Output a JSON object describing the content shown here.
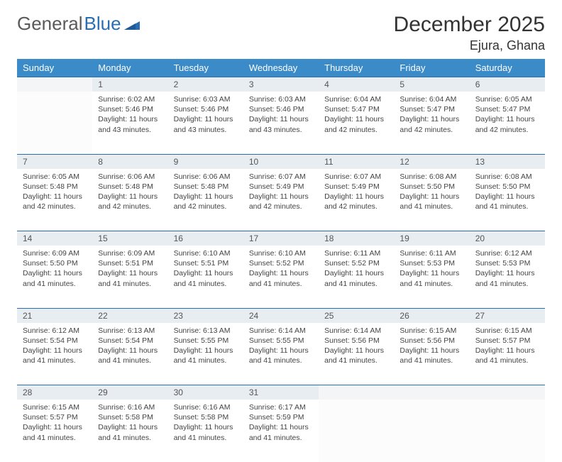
{
  "logo": {
    "part1": "General",
    "part2": "Blue"
  },
  "title": "December 2025",
  "location": "Ejura, Ghana",
  "colors": {
    "header_bg": "#3b8bc9",
    "header_text": "#ffffff",
    "daynum_bg": "#e8edf1",
    "border": "#2a6db0",
    "logo_gray": "#5a5a5a",
    "logo_blue": "#2a6db0"
  },
  "weekdays": [
    "Sunday",
    "Monday",
    "Tuesday",
    "Wednesday",
    "Thursday",
    "Friday",
    "Saturday"
  ],
  "weeks": [
    {
      "nums": [
        "",
        "1",
        "2",
        "3",
        "4",
        "5",
        "6"
      ],
      "cells": [
        null,
        {
          "sr": "Sunrise: 6:02 AM",
          "ss": "Sunset: 5:46 PM",
          "dl": "Daylight: 11 hours and 43 minutes."
        },
        {
          "sr": "Sunrise: 6:03 AM",
          "ss": "Sunset: 5:46 PM",
          "dl": "Daylight: 11 hours and 43 minutes."
        },
        {
          "sr": "Sunrise: 6:03 AM",
          "ss": "Sunset: 5:46 PM",
          "dl": "Daylight: 11 hours and 43 minutes."
        },
        {
          "sr": "Sunrise: 6:04 AM",
          "ss": "Sunset: 5:47 PM",
          "dl": "Daylight: 11 hours and 42 minutes."
        },
        {
          "sr": "Sunrise: 6:04 AM",
          "ss": "Sunset: 5:47 PM",
          "dl": "Daylight: 11 hours and 42 minutes."
        },
        {
          "sr": "Sunrise: 6:05 AM",
          "ss": "Sunset: 5:47 PM",
          "dl": "Daylight: 11 hours and 42 minutes."
        }
      ]
    },
    {
      "nums": [
        "7",
        "8",
        "9",
        "10",
        "11",
        "12",
        "13"
      ],
      "cells": [
        {
          "sr": "Sunrise: 6:05 AM",
          "ss": "Sunset: 5:48 PM",
          "dl": "Daylight: 11 hours and 42 minutes."
        },
        {
          "sr": "Sunrise: 6:06 AM",
          "ss": "Sunset: 5:48 PM",
          "dl": "Daylight: 11 hours and 42 minutes."
        },
        {
          "sr": "Sunrise: 6:06 AM",
          "ss": "Sunset: 5:48 PM",
          "dl": "Daylight: 11 hours and 42 minutes."
        },
        {
          "sr": "Sunrise: 6:07 AM",
          "ss": "Sunset: 5:49 PM",
          "dl": "Daylight: 11 hours and 42 minutes."
        },
        {
          "sr": "Sunrise: 6:07 AM",
          "ss": "Sunset: 5:49 PM",
          "dl": "Daylight: 11 hours and 42 minutes."
        },
        {
          "sr": "Sunrise: 6:08 AM",
          "ss": "Sunset: 5:50 PM",
          "dl": "Daylight: 11 hours and 41 minutes."
        },
        {
          "sr": "Sunrise: 6:08 AM",
          "ss": "Sunset: 5:50 PM",
          "dl": "Daylight: 11 hours and 41 minutes."
        }
      ]
    },
    {
      "nums": [
        "14",
        "15",
        "16",
        "17",
        "18",
        "19",
        "20"
      ],
      "cells": [
        {
          "sr": "Sunrise: 6:09 AM",
          "ss": "Sunset: 5:50 PM",
          "dl": "Daylight: 11 hours and 41 minutes."
        },
        {
          "sr": "Sunrise: 6:09 AM",
          "ss": "Sunset: 5:51 PM",
          "dl": "Daylight: 11 hours and 41 minutes."
        },
        {
          "sr": "Sunrise: 6:10 AM",
          "ss": "Sunset: 5:51 PM",
          "dl": "Daylight: 11 hours and 41 minutes."
        },
        {
          "sr": "Sunrise: 6:10 AM",
          "ss": "Sunset: 5:52 PM",
          "dl": "Daylight: 11 hours and 41 minutes."
        },
        {
          "sr": "Sunrise: 6:11 AM",
          "ss": "Sunset: 5:52 PM",
          "dl": "Daylight: 11 hours and 41 minutes."
        },
        {
          "sr": "Sunrise: 6:11 AM",
          "ss": "Sunset: 5:53 PM",
          "dl": "Daylight: 11 hours and 41 minutes."
        },
        {
          "sr": "Sunrise: 6:12 AM",
          "ss": "Sunset: 5:53 PM",
          "dl": "Daylight: 11 hours and 41 minutes."
        }
      ]
    },
    {
      "nums": [
        "21",
        "22",
        "23",
        "24",
        "25",
        "26",
        "27"
      ],
      "cells": [
        {
          "sr": "Sunrise: 6:12 AM",
          "ss": "Sunset: 5:54 PM",
          "dl": "Daylight: 11 hours and 41 minutes."
        },
        {
          "sr": "Sunrise: 6:13 AM",
          "ss": "Sunset: 5:54 PM",
          "dl": "Daylight: 11 hours and 41 minutes."
        },
        {
          "sr": "Sunrise: 6:13 AM",
          "ss": "Sunset: 5:55 PM",
          "dl": "Daylight: 11 hours and 41 minutes."
        },
        {
          "sr": "Sunrise: 6:14 AM",
          "ss": "Sunset: 5:55 PM",
          "dl": "Daylight: 11 hours and 41 minutes."
        },
        {
          "sr": "Sunrise: 6:14 AM",
          "ss": "Sunset: 5:56 PM",
          "dl": "Daylight: 11 hours and 41 minutes."
        },
        {
          "sr": "Sunrise: 6:15 AM",
          "ss": "Sunset: 5:56 PM",
          "dl": "Daylight: 11 hours and 41 minutes."
        },
        {
          "sr": "Sunrise: 6:15 AM",
          "ss": "Sunset: 5:57 PM",
          "dl": "Daylight: 11 hours and 41 minutes."
        }
      ]
    },
    {
      "nums": [
        "28",
        "29",
        "30",
        "31",
        "",
        "",
        ""
      ],
      "cells": [
        {
          "sr": "Sunrise: 6:15 AM",
          "ss": "Sunset: 5:57 PM",
          "dl": "Daylight: 11 hours and 41 minutes."
        },
        {
          "sr": "Sunrise: 6:16 AM",
          "ss": "Sunset: 5:58 PM",
          "dl": "Daylight: 11 hours and 41 minutes."
        },
        {
          "sr": "Sunrise: 6:16 AM",
          "ss": "Sunset: 5:58 PM",
          "dl": "Daylight: 11 hours and 41 minutes."
        },
        {
          "sr": "Sunrise: 6:17 AM",
          "ss": "Sunset: 5:59 PM",
          "dl": "Daylight: 11 hours and 41 minutes."
        },
        null,
        null,
        null
      ]
    }
  ]
}
